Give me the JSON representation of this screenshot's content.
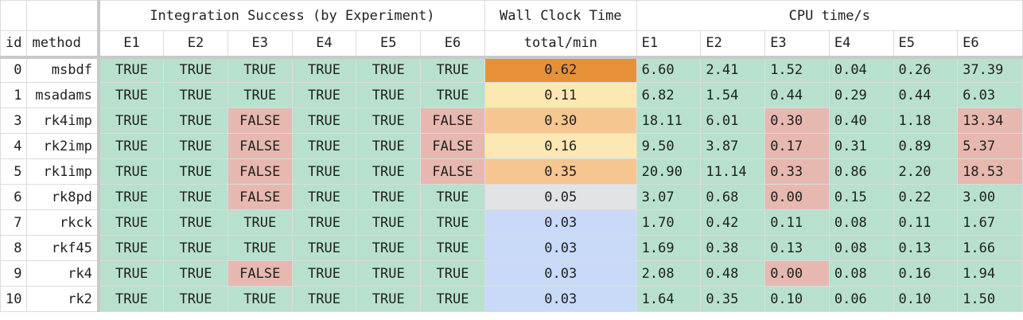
{
  "header": {
    "group_integration": "Integration Success (by Experiment)",
    "group_wall": "Wall Clock Time",
    "group_cpu": "CPU time/s",
    "col_id": "id",
    "col_method": "method",
    "experiments": [
      "E1",
      "E2",
      "E3",
      "E4",
      "E5",
      "E6"
    ],
    "wall_sub": "total/min"
  },
  "rows": [
    {
      "id": "0",
      "method": "msbdf",
      "success": [
        "TRUE",
        "TRUE",
        "TRUE",
        "TRUE",
        "TRUE",
        "TRUE"
      ],
      "wall": "0.62",
      "cpu": [
        "6.60",
        "2.41",
        "1.52",
        "0.04",
        "0.26",
        "37.39"
      ]
    },
    {
      "id": "1",
      "method": "msadams",
      "success": [
        "TRUE",
        "TRUE",
        "TRUE",
        "TRUE",
        "TRUE",
        "TRUE"
      ],
      "wall": "0.11",
      "cpu": [
        "6.82",
        "1.54",
        "0.44",
        "0.29",
        "0.44",
        "6.03"
      ]
    },
    {
      "id": "3",
      "method": "rk4imp",
      "success": [
        "TRUE",
        "TRUE",
        "FALSE",
        "TRUE",
        "TRUE",
        "FALSE"
      ],
      "wall": "0.30",
      "cpu": [
        "18.11",
        "6.01",
        "0.30",
        "0.40",
        "1.18",
        "13.34"
      ]
    },
    {
      "id": "4",
      "method": "rk2imp",
      "success": [
        "TRUE",
        "TRUE",
        "FALSE",
        "TRUE",
        "TRUE",
        "FALSE"
      ],
      "wall": "0.16",
      "cpu": [
        "9.50",
        "3.87",
        "0.17",
        "0.31",
        "0.89",
        "5.37"
      ]
    },
    {
      "id": "5",
      "method": "rk1imp",
      "success": [
        "TRUE",
        "TRUE",
        "FALSE",
        "TRUE",
        "TRUE",
        "FALSE"
      ],
      "wall": "0.35",
      "cpu": [
        "20.90",
        "11.14",
        "0.33",
        "0.86",
        "2.20",
        "18.53"
      ]
    },
    {
      "id": "6",
      "method": "rk8pd",
      "success": [
        "TRUE",
        "TRUE",
        "FALSE",
        "TRUE",
        "TRUE",
        "TRUE"
      ],
      "wall": "0.05",
      "cpu": [
        "3.07",
        "0.68",
        "0.00",
        "0.15",
        "0.22",
        "3.00"
      ]
    },
    {
      "id": "7",
      "method": "rkck",
      "success": [
        "TRUE",
        "TRUE",
        "TRUE",
        "TRUE",
        "TRUE",
        "TRUE"
      ],
      "wall": "0.03",
      "cpu": [
        "1.70",
        "0.42",
        "0.11",
        "0.08",
        "0.11",
        "1.67"
      ]
    },
    {
      "id": "8",
      "method": "rkf45",
      "success": [
        "TRUE",
        "TRUE",
        "TRUE",
        "TRUE",
        "TRUE",
        "TRUE"
      ],
      "wall": "0.03",
      "cpu": [
        "1.69",
        "0.38",
        "0.13",
        "0.08",
        "0.13",
        "1.66"
      ]
    },
    {
      "id": "9",
      "method": "rk4",
      "success": [
        "TRUE",
        "TRUE",
        "FALSE",
        "TRUE",
        "TRUE",
        "TRUE"
      ],
      "wall": "0.03",
      "cpu": [
        "2.08",
        "0.48",
        "0.00",
        "0.08",
        "0.16",
        "1.94"
      ]
    },
    {
      "id": "10",
      "method": "rk2",
      "success": [
        "TRUE",
        "TRUE",
        "TRUE",
        "TRUE",
        "TRUE",
        "TRUE"
      ],
      "wall": "0.03",
      "cpu": [
        "1.64",
        "0.35",
        "0.10",
        "0.06",
        "0.10",
        "1.50"
      ]
    }
  ],
  "colors": {
    "success_true": "#b7e1cd",
    "success_false": "#e6b8af",
    "wall_dark": "#e69138",
    "wall_mid": "#f6c690",
    "wall_light": "#fce8b2",
    "wall_gray": "#e1e3e5",
    "wall_blue": "#c9daf8"
  }
}
